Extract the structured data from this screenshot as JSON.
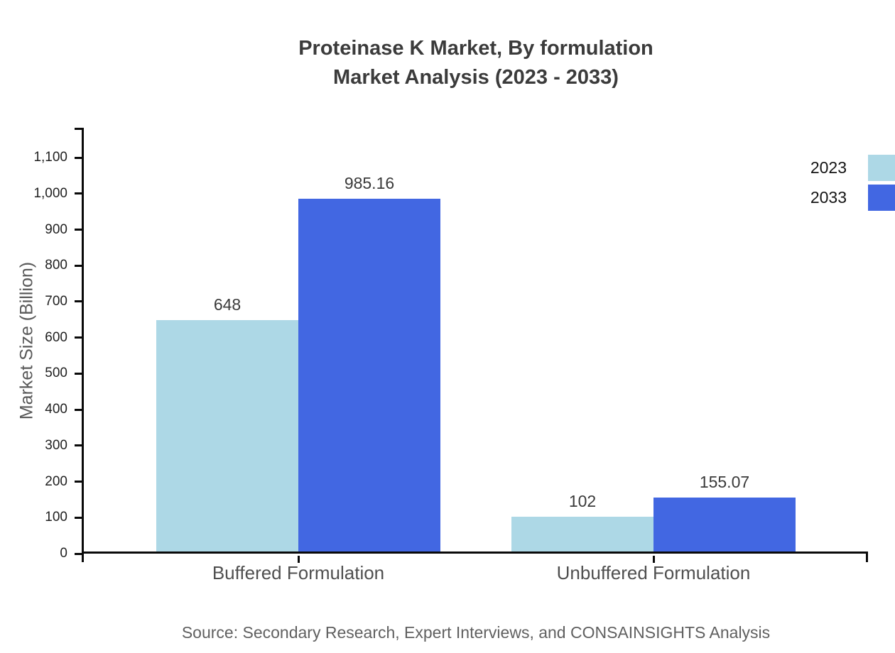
{
  "title": {
    "line1": "Proteinase K Market, By formulation",
    "line2": "Market Analysis (2023 - 2033)"
  },
  "source": "Source: Secondary Research, Expert Interviews, and CONSAINSIGHTS Analysis",
  "chart_data": {
    "type": "bar",
    "title": "Proteinase K Market, By formulation Market Analysis (2023 - 2033)",
    "categories": [
      "Buffered Formulation",
      "Unbuffered Formulation"
    ],
    "series": [
      {
        "name": "2023",
        "color": "#ADD8E6",
        "values": [
          648,
          102
        ]
      },
      {
        "name": "2033",
        "color": "#4267E2",
        "values": [
          985.16,
          155.07
        ]
      }
    ],
    "value_labels": [
      [
        "648",
        "985.16"
      ],
      [
        "102",
        "155.07"
      ]
    ],
    "xlabel": "",
    "ylabel": "Market Size (Billion)",
    "ylim": [
      0,
      1183
    ],
    "yticks": [
      0,
      100,
      200,
      300,
      400,
      500,
      600,
      700,
      800,
      900,
      1000,
      1100
    ],
    "ytick_labels": [
      "0",
      "100",
      "200",
      "300",
      "400",
      "500",
      "600",
      "700",
      "800",
      "900",
      "1,000",
      "1,100"
    ],
    "grid": false,
    "legend_position": "top-right",
    "axis_color": "#0a0a0a"
  }
}
